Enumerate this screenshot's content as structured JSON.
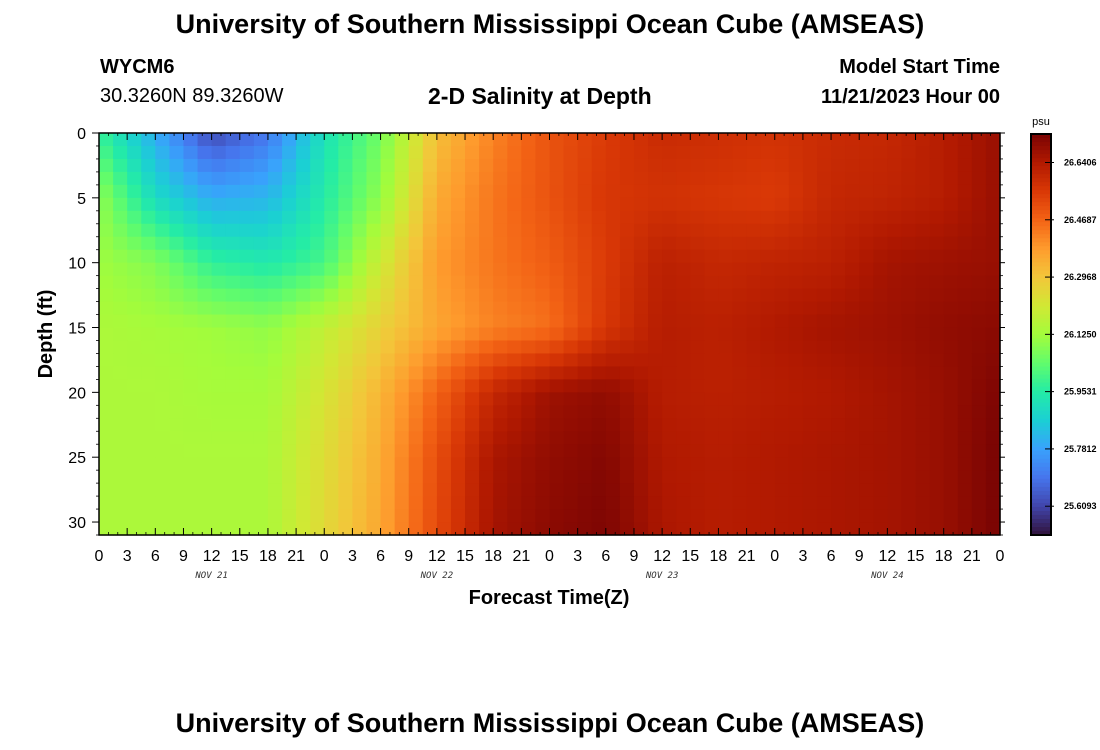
{
  "header": {
    "title": "University of Southern Mississippi Ocean Cube (AMSEAS)",
    "station": "WYCM6",
    "coordinates": "30.3260N  89.3260W",
    "subtitle": "2-D Salinity at Depth",
    "model_start_label": "Model Start Time",
    "model_start_value": "11/21/2023 Hour 00"
  },
  "footer": {
    "title": "University of Southern Mississippi Ocean Cube (AMSEAS)"
  },
  "colormap": [
    "#30123b",
    "#4145ab",
    "#4675ed",
    "#39a2fc",
    "#1bcfd4",
    "#24eca6",
    "#61fc6c",
    "#a4fc3b",
    "#d1e834",
    "#f3c63a",
    "#fe9b2d",
    "#f36315",
    "#d93806",
    "#b11901",
    "#7a0403"
  ],
  "chart_data": {
    "type": "heatmap",
    "title": "2-D Salinity at Depth",
    "xlabel": "Forecast Time(Z)",
    "ylabel": "Depth (ft)",
    "x_unit": "hours from model start",
    "x": [
      0,
      6,
      12,
      18,
      24,
      30,
      36,
      42,
      48,
      54,
      60,
      66,
      72,
      78,
      84,
      90,
      96
    ],
    "x_ticks": [
      "0",
      "3",
      "6",
      "9",
      "12",
      "15",
      "18",
      "21",
      "0",
      "3",
      "6",
      "9",
      "12",
      "15",
      "18",
      "21",
      "0",
      "3",
      "6",
      "9",
      "12",
      "15",
      "18",
      "21",
      "0",
      "3",
      "6",
      "9",
      "12",
      "15",
      "18",
      "21",
      "0"
    ],
    "x_day_labels": [
      "NOV 21",
      "NOV 22",
      "NOV 23",
      "NOV 24"
    ],
    "y": [
      0,
      5,
      10,
      15,
      20,
      25,
      31
    ],
    "y_ticks": [
      "0",
      "5",
      "10",
      "15",
      "20",
      "25",
      "30"
    ],
    "ylim": [
      31,
      0
    ],
    "colorbar": {
      "unit": "psu",
      "range": [
        25.5229,
        26.7261
      ],
      "tick_labels": [
        "25.6093",
        "25.7812",
        "25.9531",
        "26.1250",
        "26.2968",
        "26.4687",
        "26.6406"
      ]
    },
    "z": [
      [
        25.98,
        25.8,
        25.62,
        25.7,
        25.92,
        26.06,
        26.31,
        26.42,
        26.5,
        26.55,
        26.59,
        26.58,
        26.57,
        26.59,
        26.6,
        26.63,
        26.68
      ],
      [
        26.1,
        25.9,
        25.8,
        25.82,
        25.95,
        26.1,
        26.35,
        26.44,
        26.5,
        26.56,
        26.57,
        26.56,
        26.55,
        26.6,
        26.61,
        26.63,
        26.68
      ],
      [
        26.12,
        26.08,
        25.97,
        25.94,
        26.0,
        26.2,
        26.38,
        26.44,
        26.48,
        26.55,
        26.62,
        26.6,
        26.61,
        26.62,
        26.66,
        26.67,
        26.68
      ],
      [
        26.14,
        26.13,
        26.12,
        26.1,
        26.18,
        26.27,
        26.36,
        26.42,
        26.45,
        26.56,
        26.63,
        26.62,
        26.64,
        26.66,
        26.67,
        26.69,
        26.7
      ],
      [
        26.14,
        26.14,
        26.13,
        26.13,
        26.22,
        26.33,
        26.47,
        26.6,
        26.67,
        26.69,
        26.63,
        26.62,
        26.63,
        26.64,
        26.66,
        26.68,
        26.72
      ],
      [
        26.14,
        26.14,
        26.14,
        26.14,
        26.24,
        26.35,
        26.51,
        26.65,
        26.69,
        26.71,
        26.64,
        26.63,
        26.64,
        26.65,
        26.66,
        26.68,
        26.73
      ],
      [
        26.14,
        26.14,
        26.14,
        26.14,
        26.25,
        26.36,
        26.52,
        26.66,
        26.7,
        26.72,
        26.65,
        26.63,
        26.64,
        26.65,
        26.66,
        26.68,
        26.73
      ]
    ]
  }
}
